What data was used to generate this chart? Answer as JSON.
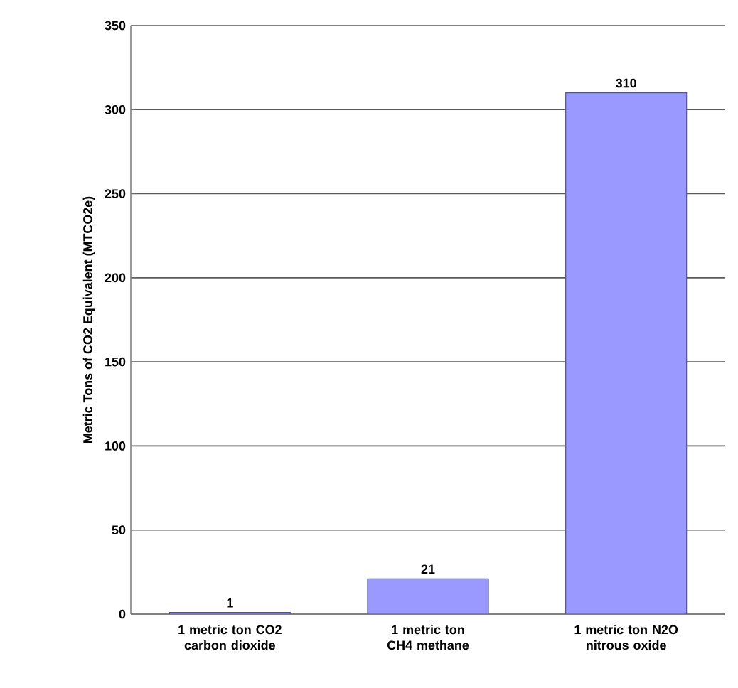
{
  "chart_data": {
    "type": "bar",
    "ylabel": "Metric Tons of CO2 Equivalent (MTCO2e)",
    "categories": [
      "1 metric ton CO2 carbon dioxide",
      "1 metric ton CH4 methane",
      "1 metric ton N2O nitrous oxide"
    ],
    "values": [
      1,
      21,
      310
    ],
    "color": "#9999ff",
    "ylim": [
      0,
      350
    ],
    "yticks": [
      0,
      50,
      100,
      150,
      200,
      250,
      300,
      350
    ],
    "grid": "y",
    "data_labels": true
  }
}
